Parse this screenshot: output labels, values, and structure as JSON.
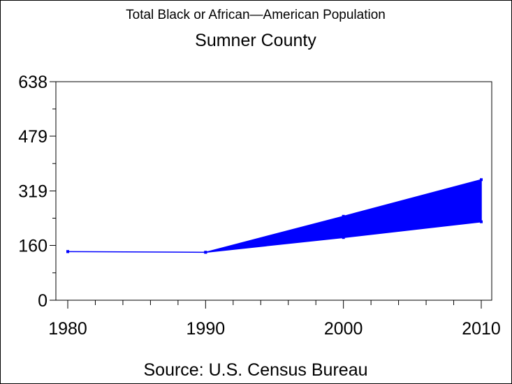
{
  "chart_data": {
    "type": "area",
    "title": "Total Black or African—American Population",
    "subtitle": "Sumner County",
    "footnote": "Source: U.S. Census Bureau",
    "xlabel": "",
    "ylabel": "",
    "x": [
      1980,
      1990,
      2000,
      2010
    ],
    "x_ticks": [
      "1980",
      "1990",
      "2000",
      "2010"
    ],
    "y_ticks": [
      "0",
      "160",
      "319",
      "479",
      "638"
    ],
    "xlim": [
      1980,
      2010
    ],
    "ylim": [
      0,
      638
    ],
    "grid": false,
    "series": [
      {
        "values": [
          142,
          140,
          245,
          352
        ]
      },
      {
        "values": [
          142,
          140,
          183,
          229
        ]
      }
    ],
    "colors": {
      "fill": "#0000ff",
      "axis": "#000000"
    }
  }
}
